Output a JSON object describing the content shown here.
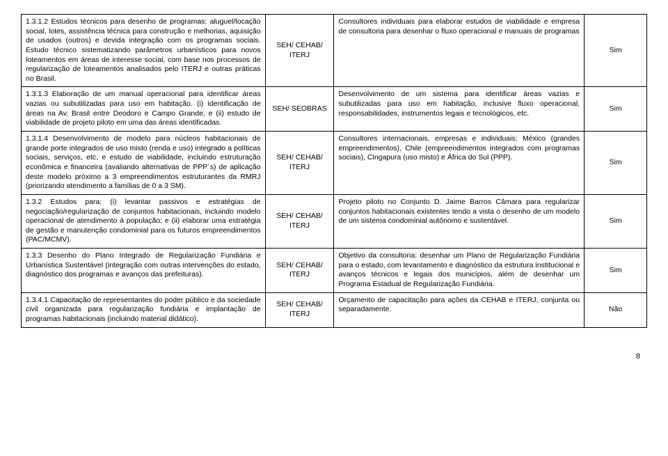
{
  "rows": [
    {
      "left": "1.3.1.2 Estudos técnicos para desenho de programas: aluguel/locação social, lotes, assistência técnica para construção e melhorias, aquisição de usados (outros) e devida integração com os programas sociais. Estudo técnico sistematizando parâmetros urbanísticos para novos loteamentos em áreas de interesse social, com base nos processos de regularização de loteamentos analisados pelo ITERJ e outras práticas no Brasil.",
      "org": "SEH/ CEHAB/ ITERJ",
      "desc": "Consultores individuais para elaborar estudos de viabilidade e empresa de consultoria para desenhar o fluxo operacional e manuais de programas",
      "flag": "Sim"
    },
    {
      "left": "1.3.1.3 Elaboração de um manual operacional para identificar áreas vazias ou subutilizadas para uso em habitação. (i) identificação de áreas na Av. Brasil entre Deodoro e Campo Grande, e (ii) estudo de viabilidade de projeto piloto em uma das áreas identificadas.",
      "org": "SEH/ SEOBRAS",
      "desc": "Desenvolvimento de um sistema para identificar áreas vazias e subutilizadas para uso em habitação, inclusive fluxo operacional, responsabilidades, instrumentos legais e tecnológicos, etc.",
      "flag": "Sim"
    },
    {
      "left": "1.3.1.4 Desenvolvimento de modelo para núcleos habitacionais de grande porte integrados de uso misto (renda e uso) integrado a políticas sociais, serviços, etc, e estudo de viabilidade, incluindo estruturação econômica e financeira (avaliando alternativas de PPP´s) de aplicação deste modelo próximo a 3 empreendimentos estruturantes da RMRJ (priorizando atendimento a famílias de 0 a 3 SM).",
      "org": "SEH/ CEHAB/ ITERJ",
      "desc": "Consultores internacionais, empresas e individuais: México (grandes empreendimentos), Chile (empreendimentos integrados com programas sociais), Cingapura (uso misto) e África do Sul (PPP).",
      "flag": "Sim"
    },
    {
      "left": "1.3.2 Estudos para: (i) levantar passivos e estratégias de negociação/regularização de conjuntos habitacionais, incluindo modelo operacional de atendimento à população; e (ii) elaborar uma estratégia de gestão e manutenção condominial para os futuros empreendimentos (PAC/MCMV).",
      "org": "SEH/ CEHAB/ ITERJ",
      "desc": "Projeto piloto no Conjunto D. Jaime Barros Câmara para regularizar conjuntos habitacionais existentes tendo a vista o desenho de um modelo de um sistema condominial autônomo e sustentável.",
      "flag": "Sim"
    },
    {
      "left": "1.3.3 Desenho do Plano Integrado de Regularização Fundiária e Urbanística Sustentável  (integração com outras intervenções do estado, diagnóstico dos programas e avanços das prefeituras).",
      "org": "SEH/ CEHAB/ ITERJ",
      "desc": "Objetivo da consultoria: desenhar um Plano de Regularização Fundiária para o estado, com levantamento e diagnóstico da estrutura institucional e avanços técnicos e legais dos municípios, além de desenhar um Programa Estadual de Regularização Fundiária.",
      "flag": "Sim"
    },
    {
      "left": "1.3.4.1 Capacitação de representantes do poder público e da sociedade civil organizada para regularização fundiária e implantação de programas habitacionais (incluindo material didático).",
      "org": "SEH/ CEHAB/ ITERJ",
      "desc": "Orçamento de capacitação para ações da CEHAB e ITERJ, conjunta ou separadamente.",
      "flag": "Não"
    }
  ],
  "page_number": "8"
}
